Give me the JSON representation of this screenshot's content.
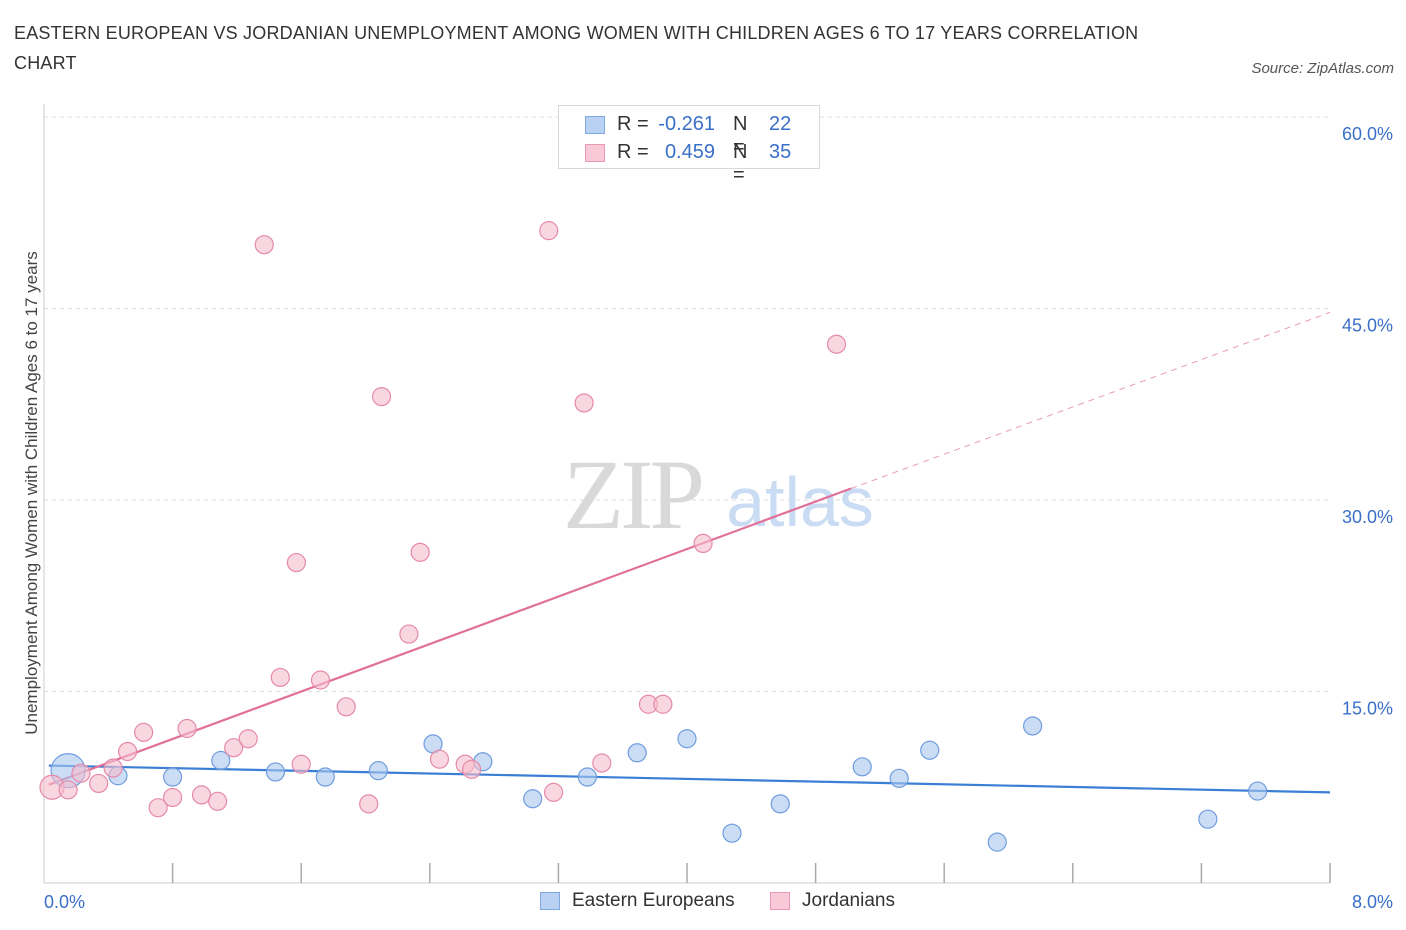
{
  "colors": {
    "blue": "#3a7fd5",
    "blue_fill": "#a9c6ef",
    "pink": "#e07098",
    "pink_fill": "#f5bccd",
    "axis_text_blue": "#3a6fc8",
    "grid": "#dcdcdc"
  },
  "header": {
    "title": "EASTERN EUROPEAN VS JORDANIAN UNEMPLOYMENT AMONG WOMEN WITH CHILDREN AGES 6 TO 17 YEARS CORRELATION CHART",
    "source": "Source: ZipAtlas.com"
  },
  "legend": {
    "rows": [
      {
        "r_label": "R =",
        "r_value": "-0.261",
        "n_label": "N =",
        "n_value": "22"
      },
      {
        "r_label": "R =",
        "r_value": "0.459",
        "n_label": "N =",
        "n_value": "35"
      }
    ]
  },
  "bottom_legend": {
    "items": [
      {
        "label": "Eastern Europeans"
      },
      {
        "label": "Jordanians"
      }
    ]
  },
  "watermark": {
    "zip": "ZIP",
    "atlas": "atlas"
  },
  "chart_data": {
    "type": "scatter",
    "title": "EASTERN EUROPEAN VS JORDANIAN UNEMPLOYMENT AMONG WOMEN WITH CHILDREN AGES 6 TO 17 YEARS CORRELATION CHART",
    "xlabel": "",
    "ylabel": "Unemployment Among Women with Children Ages 6 to 17 years",
    "xlim": [
      0,
      8
    ],
    "ylim": [
      0,
      60
    ],
    "x_tick_labels": [
      "0.0%",
      "8.0%"
    ],
    "y_ticks": [
      15,
      30,
      45,
      60
    ],
    "y_tick_labels": [
      "15.0%",
      "30.0%",
      "45.0%",
      "60.0%"
    ],
    "grid": true,
    "series": [
      {
        "name": "Eastern Europeans",
        "color": "#3a7fd5",
        "R": -0.261,
        "N": 22,
        "points": [
          {
            "x": 0.15,
            "y": 8.8,
            "size": "large"
          },
          {
            "x": 0.46,
            "y": 8.4
          },
          {
            "x": 0.8,
            "y": 8.3
          },
          {
            "x": 1.1,
            "y": 9.6
          },
          {
            "x": 1.44,
            "y": 8.7
          },
          {
            "x": 1.75,
            "y": 8.3
          },
          {
            "x": 2.08,
            "y": 8.8
          },
          {
            "x": 2.42,
            "y": 10.9
          },
          {
            "x": 2.73,
            "y": 9.5
          },
          {
            "x": 3.04,
            "y": 6.6
          },
          {
            "x": 3.38,
            "y": 8.3
          },
          {
            "x": 3.69,
            "y": 10.2
          },
          {
            "x": 4.0,
            "y": 11.3
          },
          {
            "x": 4.28,
            "y": 3.9
          },
          {
            "x": 4.58,
            "y": 6.2
          },
          {
            "x": 5.09,
            "y": 9.1
          },
          {
            "x": 5.32,
            "y": 8.2
          },
          {
            "x": 5.51,
            "y": 10.4
          },
          {
            "x": 5.93,
            "y": 3.2
          },
          {
            "x": 6.15,
            "y": 12.3
          },
          {
            "x": 7.24,
            "y": 5.0
          },
          {
            "x": 7.55,
            "y": 7.2
          }
        ],
        "trend": {
          "x0": 0.03,
          "y0": 9.2,
          "x1": 8.0,
          "y1": 7.1
        }
      },
      {
        "name": "Jordanians",
        "color": "#e07098",
        "R": 0.459,
        "N": 35,
        "points": [
          {
            "x": 0.05,
            "y": 7.5,
            "size": "large"
          },
          {
            "x": 0.15,
            "y": 7.3
          },
          {
            "x": 0.23,
            "y": 8.6
          },
          {
            "x": 0.34,
            "y": 7.8
          },
          {
            "x": 0.43,
            "y": 9.0
          },
          {
            "x": 0.52,
            "y": 10.3
          },
          {
            "x": 0.62,
            "y": 11.8
          },
          {
            "x": 0.71,
            "y": 5.9
          },
          {
            "x": 0.8,
            "y": 6.7
          },
          {
            "x": 0.89,
            "y": 12.1
          },
          {
            "x": 0.98,
            "y": 6.9
          },
          {
            "x": 1.08,
            "y": 6.4
          },
          {
            "x": 1.18,
            "y": 10.6
          },
          {
            "x": 1.27,
            "y": 11.3
          },
          {
            "x": 1.37,
            "y": 50.0
          },
          {
            "x": 1.47,
            "y": 16.1
          },
          {
            "x": 1.57,
            "y": 25.1
          },
          {
            "x": 1.6,
            "y": 9.3
          },
          {
            "x": 1.72,
            "y": 15.9
          },
          {
            "x": 1.88,
            "y": 13.8
          },
          {
            "x": 2.02,
            "y": 6.2
          },
          {
            "x": 2.1,
            "y": 38.1
          },
          {
            "x": 2.27,
            "y": 19.5
          },
          {
            "x": 2.34,
            "y": 25.9
          },
          {
            "x": 2.46,
            "y": 9.7
          },
          {
            "x": 2.62,
            "y": 9.3
          },
          {
            "x": 2.66,
            "y": 8.9
          },
          {
            "x": 3.14,
            "y": 51.1
          },
          {
            "x": 3.17,
            "y": 7.1
          },
          {
            "x": 3.36,
            "y": 37.6
          },
          {
            "x": 3.47,
            "y": 9.4
          },
          {
            "x": 3.76,
            "y": 14.0
          },
          {
            "x": 3.85,
            "y": 14.0
          },
          {
            "x": 4.1,
            "y": 26.6
          },
          {
            "x": 4.93,
            "y": 42.2
          }
        ],
        "trend": {
          "x0": 0.03,
          "y0": 7.7,
          "x1": 5.02,
          "y1": 30.9
        },
        "trend_extension": {
          "x0": 5.02,
          "y0": 30.9,
          "x1": 8.0,
          "y1": 44.7
        }
      }
    ]
  }
}
